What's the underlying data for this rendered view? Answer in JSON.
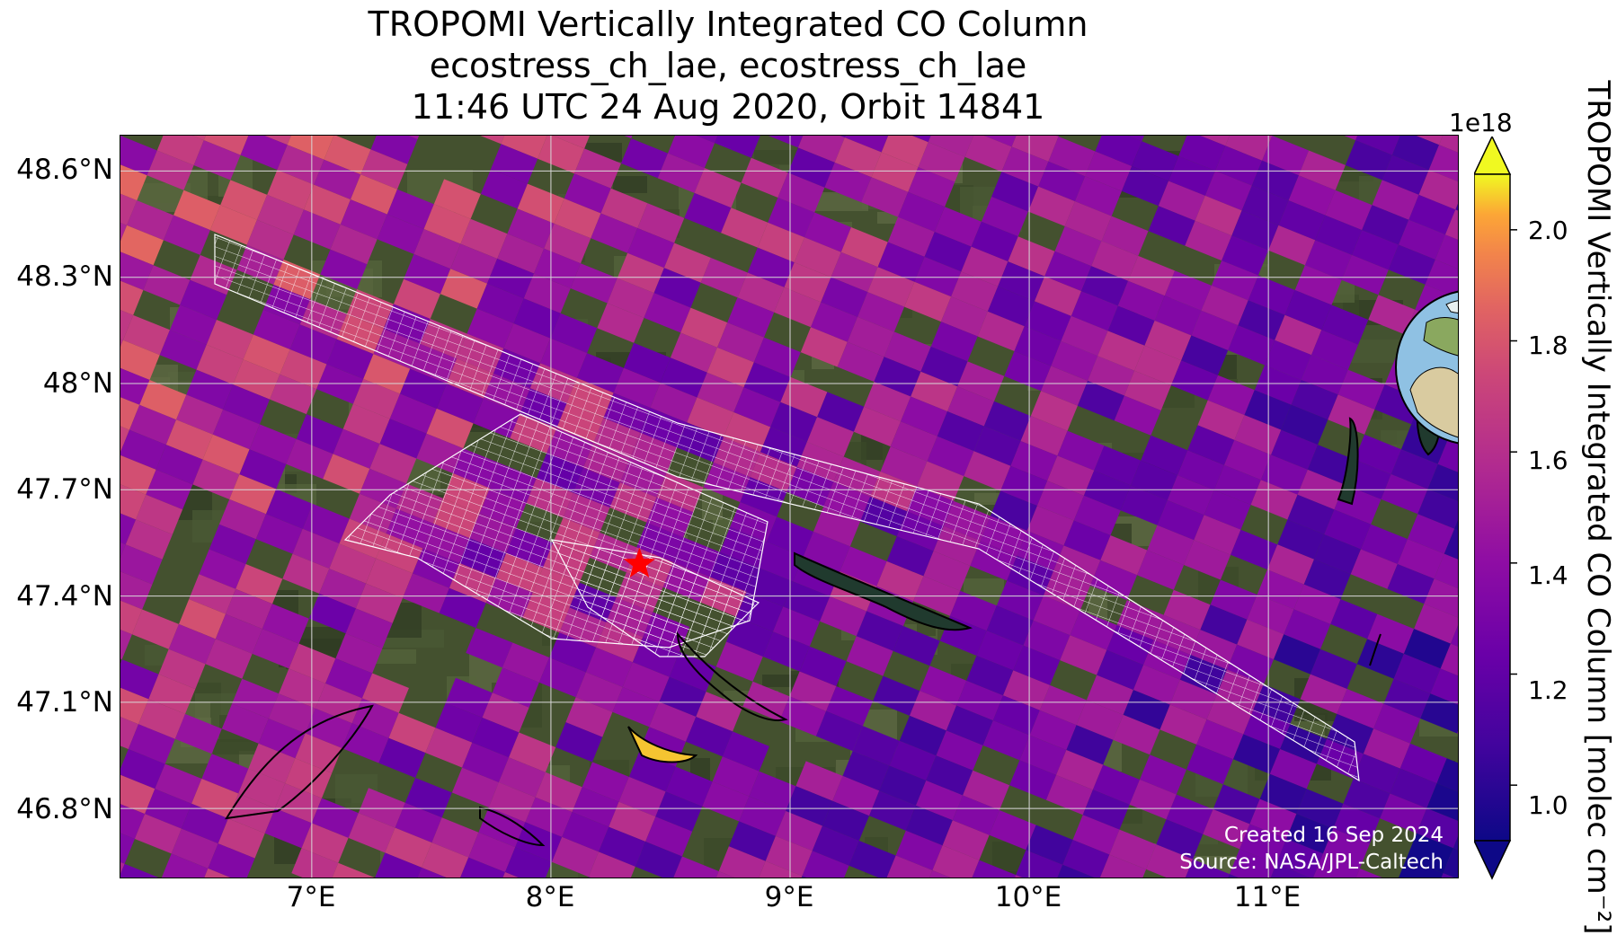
{
  "title": {
    "line1": "TROPOMI Vertically Integrated CO Column",
    "line2": "ecostress_ch_lae, ecostress_ch_lae",
    "line3": "11:46 UTC 24 Aug 2020, Orbit 14841"
  },
  "map": {
    "lon_range": [
      6.2,
      11.8
    ],
    "lat_range": [
      46.6,
      48.7
    ],
    "lat_ticks": [
      "48.6°N",
      "48.3°N",
      "48°N",
      "47.7°N",
      "47.4°N",
      "47.1°N",
      "46.8°N"
    ],
    "lon_ticks": [
      "7°E",
      "8°E",
      "9°E",
      "10°E",
      "11°E"
    ],
    "target_marker": {
      "lon": 8.37,
      "lat": 47.49,
      "color": "#ff0000",
      "icon": "star-icon"
    },
    "inset_globe": {
      "center_lon": 8.4,
      "center_lat": 47.5,
      "icon": "globe-icon"
    },
    "credits": {
      "created": "Created 16 Sep 2024",
      "source": "Source: NASA/JPL-Caltech"
    }
  },
  "colorbar": {
    "colormap": "plasma",
    "exponent": "1e18",
    "range": [
      0.9,
      2.1
    ],
    "ticks": [
      "2.0",
      "1.8",
      "1.6",
      "1.4",
      "1.2",
      "1.0"
    ],
    "tick_values": [
      2.0,
      1.8,
      1.6,
      1.4,
      1.2,
      1.0
    ],
    "label": "TROPOMI Vertically Integrated CO Column [molec cm⁻²]",
    "extend": "both"
  }
}
